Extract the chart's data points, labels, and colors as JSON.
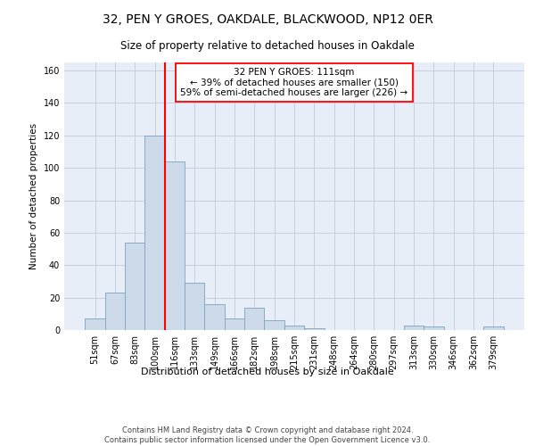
{
  "title1": "32, PEN Y GROES, OAKDALE, BLACKWOOD, NP12 0ER",
  "title2": "Size of property relative to detached houses in Oakdale",
  "xlabel": "Distribution of detached houses by size in Oakdale",
  "ylabel": "Number of detached properties",
  "bar_labels": [
    "51sqm",
    "67sqm",
    "83sqm",
    "100sqm",
    "116sqm",
    "133sqm",
    "149sqm",
    "166sqm",
    "182sqm",
    "198sqm",
    "215sqm",
    "231sqm",
    "248sqm",
    "264sqm",
    "280sqm",
    "297sqm",
    "313sqm",
    "330sqm",
    "346sqm",
    "362sqm",
    "379sqm"
  ],
  "bar_values": [
    7,
    23,
    54,
    120,
    104,
    29,
    16,
    7,
    14,
    6,
    3,
    1,
    0,
    0,
    0,
    0,
    3,
    2,
    0,
    0,
    2
  ],
  "bar_color": "#cddaea",
  "bar_edge_color": "#7ba3c0",
  "grid_color": "#c8cfe0",
  "background_color": "#e8eef8",
  "vline_color": "red",
  "vline_x_index": 3.5,
  "annotation_text": "32 PEN Y GROES: 111sqm\n← 39% of detached houses are smaller (150)\n59% of semi-detached houses are larger (226) →",
  "annotation_box_color": "white",
  "annotation_box_edge": "red",
  "footer_text": "Contains HM Land Registry data © Crown copyright and database right 2024.\nContains public sector information licensed under the Open Government Licence v3.0.",
  "ylim": [
    0,
    165
  ],
  "yticks": [
    0,
    20,
    40,
    60,
    80,
    100,
    120,
    140,
    160
  ],
  "title1_fontsize": 10,
  "title2_fontsize": 8.5,
  "ylabel_fontsize": 7.5,
  "xlabel_fontsize": 8,
  "tick_fontsize": 7,
  "annotation_fontsize": 7.5,
  "footer_fontsize": 6
}
